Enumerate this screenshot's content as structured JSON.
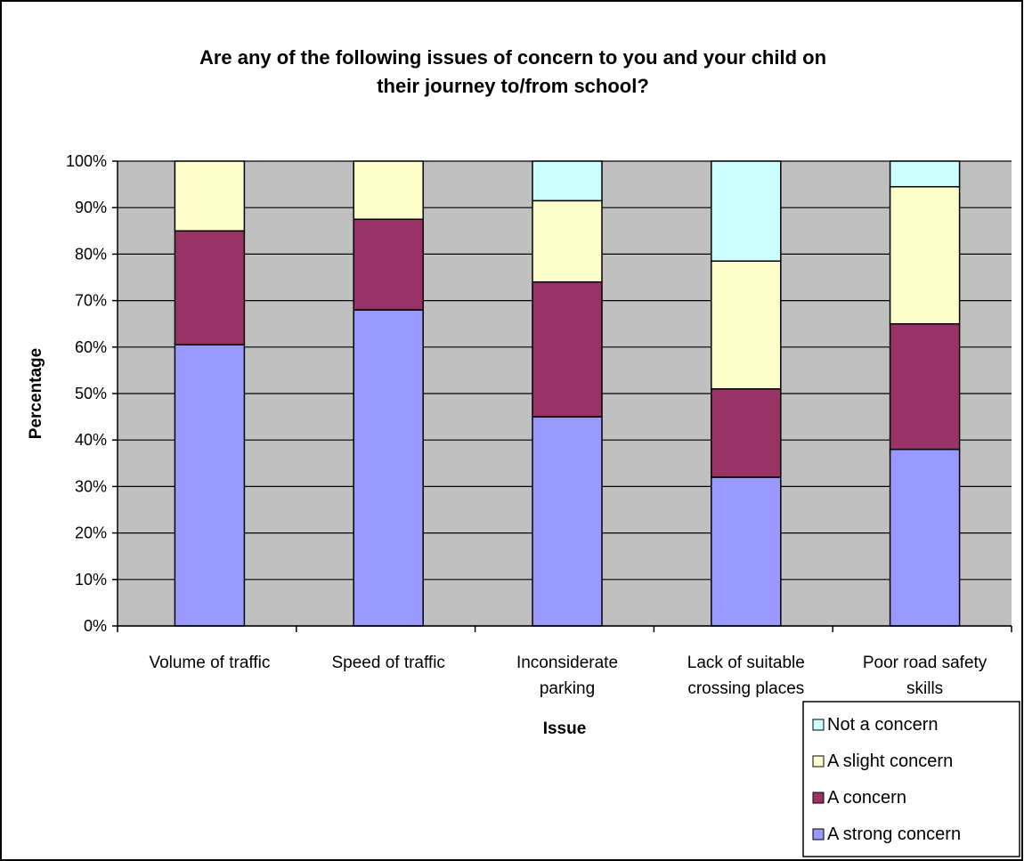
{
  "chart_data": {
    "type": "bar",
    "stacked": true,
    "title": "Are any of the following issues of concern to you and your child on their journey to/from school?",
    "title_lines": [
      "Are any of the following issues of concern to you and your child on",
      "their journey to/from school?"
    ],
    "xlabel": "Issue",
    "ylabel": "Percentage",
    "ylim": [
      0,
      100
    ],
    "yticks": [
      "0%",
      "10%",
      "20%",
      "30%",
      "40%",
      "50%",
      "60%",
      "70%",
      "80%",
      "90%",
      "100%"
    ],
    "grid": true,
    "legend_position": "bottom-right",
    "categories": [
      "Volume of traffic",
      "Speed of traffic",
      "Inconsiderate parking",
      "Lack of suitable crossing places",
      "Poor road safety skills"
    ],
    "category_lines": [
      [
        "Volume of traffic"
      ],
      [
        "Speed of traffic"
      ],
      [
        "Inconsiderate",
        "parking"
      ],
      [
        "Lack of suitable",
        "crossing places"
      ],
      [
        "Poor road safety",
        "skills"
      ]
    ],
    "series": [
      {
        "name": "A strong concern",
        "color": "#9999FF",
        "values": [
          60.5,
          68.0,
          45.0,
          32.0,
          38.0
        ]
      },
      {
        "name": "A concern",
        "color": "#993366",
        "values": [
          24.5,
          19.5,
          29.0,
          19.0,
          27.0
        ]
      },
      {
        "name": "A slight concern",
        "color": "#FFFFCC",
        "values": [
          15.0,
          12.5,
          17.5,
          27.5,
          29.5
        ]
      },
      {
        "name": "Not a concern",
        "color": "#CCFFFF",
        "values": [
          0.0,
          0.0,
          8.5,
          21.5,
          5.5
        ]
      }
    ],
    "legend_order": [
      "Not a concern",
      "A slight concern",
      "A concern",
      "A strong concern"
    ],
    "plot_background": "#C0C0C0"
  }
}
